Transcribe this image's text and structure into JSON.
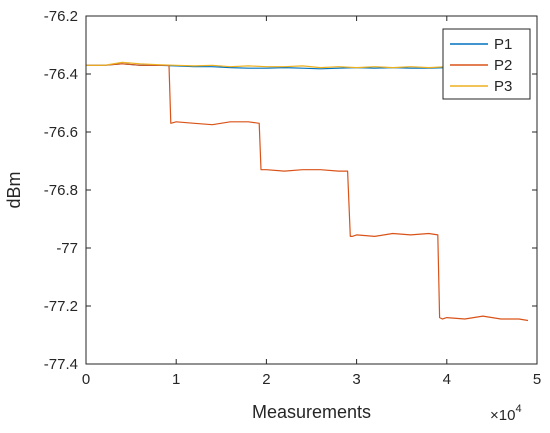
{
  "chart_data": {
    "type": "line",
    "title": "",
    "xlabel": "Measurements",
    "ylabel": "dBm",
    "x_exponent_label": "×10",
    "x_exponent_power": "4",
    "xlim": [
      0,
      50000
    ],
    "ylim": [
      -77.4,
      -76.2
    ],
    "xticks": [
      0,
      10000,
      20000,
      30000,
      40000,
      50000
    ],
    "xtick_labels": [
      "0",
      "1",
      "2",
      "3",
      "4",
      "5"
    ],
    "yticks": [
      -77.4,
      -77.2,
      -77.0,
      -76.8,
      -76.6,
      -76.4,
      -76.2
    ],
    "ytick_labels": [
      "-77.4",
      "-77.2",
      "-77",
      "-76.8",
      "-76.6",
      "-76.4",
      "-76.2"
    ],
    "grid": false,
    "legend_position": "top-right",
    "colors": {
      "P1": "#0072bd",
      "P2": "#d95319",
      "P3": "#edb120",
      "axis": "#262626"
    },
    "series": [
      {
        "name": "P1",
        "x": [
          0,
          2000,
          4000,
          6000,
          8000,
          10000,
          12000,
          14000,
          16000,
          18000,
          20000,
          22000,
          24000,
          26000,
          28000,
          30000,
          32000,
          34000,
          36000,
          38000,
          40000,
          42000,
          44000,
          46000,
          48000,
          49000
        ],
        "values": [
          -76.37,
          -76.37,
          -76.365,
          -76.37,
          -76.37,
          -76.372,
          -76.375,
          -76.375,
          -76.378,
          -76.38,
          -76.38,
          -76.378,
          -76.38,
          -76.382,
          -76.38,
          -76.378,
          -76.38,
          -76.378,
          -76.38,
          -76.38,
          -76.378,
          -76.38,
          -76.375,
          -76.378,
          -76.38,
          -76.38
        ]
      },
      {
        "name": "P2",
        "x": [
          0,
          2000,
          4000,
          6000,
          8000,
          9200,
          9400,
          10000,
          12000,
          14000,
          16000,
          18000,
          19200,
          19400,
          20000,
          22000,
          24000,
          26000,
          28000,
          29000,
          29300,
          29500,
          30000,
          32000,
          34000,
          36000,
          38000,
          39000,
          39200,
          39500,
          40000,
          42000,
          44000,
          46000,
          48000,
          49000
        ],
        "values": [
          -76.37,
          -76.37,
          -76.365,
          -76.37,
          -76.37,
          -76.37,
          -76.57,
          -76.565,
          -76.57,
          -76.575,
          -76.565,
          -76.565,
          -76.57,
          -76.73,
          -76.73,
          -76.735,
          -76.73,
          -76.73,
          -76.735,
          -76.735,
          -76.96,
          -76.96,
          -76.955,
          -76.96,
          -76.95,
          -76.955,
          -76.95,
          -76.955,
          -77.24,
          -77.245,
          -77.24,
          -77.245,
          -77.235,
          -77.245,
          -77.245,
          -77.25
        ]
      },
      {
        "name": "P3",
        "x": [
          0,
          2000,
          4000,
          6000,
          8000,
          10000,
          12000,
          14000,
          16000,
          18000,
          20000,
          22000,
          24000,
          26000,
          28000,
          30000,
          32000,
          34000,
          36000,
          38000,
          40000,
          42000,
          44000,
          46000,
          48000,
          49000
        ],
        "values": [
          -76.37,
          -76.37,
          -76.36,
          -76.365,
          -76.368,
          -76.37,
          -76.372,
          -76.37,
          -76.375,
          -76.372,
          -76.375,
          -76.375,
          -76.372,
          -76.378,
          -76.375,
          -76.378,
          -76.375,
          -76.378,
          -76.375,
          -76.378,
          -76.375,
          -76.38,
          -76.375,
          -76.378,
          -76.375,
          -76.372
        ]
      }
    ]
  }
}
